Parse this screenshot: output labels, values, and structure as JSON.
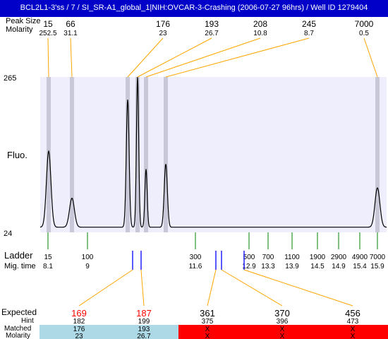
{
  "window": {
    "title": "BCL2L1-3'ss / 7 / SI_SR-A1_global_1|NIH:OVCAR-3-Crashing (2006-07-27 96hrs) / Well ID 1279404"
  },
  "colors": {
    "title_bar": "#0000c8",
    "plot_background": "#eeeefc",
    "band_marker": "#c8c8d8",
    "trace": "#000000",
    "ladder_tick": "#008000",
    "orange_connector": "#ffa500",
    "matched_marker": "#0000ff",
    "matched_bg": "#add8e6",
    "unmatched_bg": "#ff0000",
    "hint_red": "#ff0000"
  },
  "header": {
    "row1_label": "Peak Size",
    "row2_label": "Molarity",
    "peaks": [
      {
        "size": "15",
        "molarity": "252.5"
      },
      {
        "size": "66",
        "molarity": "31.1"
      },
      {
        "size": "176",
        "molarity": "23"
      },
      {
        "size": "193",
        "molarity": "26.7"
      },
      {
        "size": "208",
        "molarity": "10.8"
      },
      {
        "size": "245",
        "molarity": "8.7"
      },
      {
        "size": "7000",
        "molarity": "0.5"
      }
    ]
  },
  "chart_data": {
    "type": "line",
    "ylabel": "Fluo.",
    "ylim": [
      24,
      265
    ],
    "y_tick_labels": [
      "265",
      "24"
    ],
    "x_scale": "ladder size (bp), piecewise by ladder",
    "ladder": {
      "label": "Ladder",
      "mig_label": "Mig. time",
      "entries": [
        {
          "size": "15",
          "mig_time": "8.1"
        },
        {
          "size": "100",
          "mig_time": "9"
        },
        {
          "size": "300",
          "mig_time": "11.6"
        },
        {
          "size": "500",
          "mig_time": "12.9"
        },
        {
          "size": "700",
          "mig_time": "13.3"
        },
        {
          "size": "1100",
          "mig_time": "13.9"
        },
        {
          "size": "1900",
          "mig_time": "14.5"
        },
        {
          "size": "2900",
          "mig_time": "14.9"
        },
        {
          "size": "4900",
          "mig_time": "15.4"
        },
        {
          "size": "7000",
          "mig_time": "15.9"
        }
      ]
    },
    "peaks": [
      {
        "size": 15,
        "height": 150
      },
      {
        "size": 66,
        "height": 77
      },
      {
        "size": 176,
        "height": 230
      },
      {
        "size": 193,
        "height": 265
      },
      {
        "size": 208,
        "height": 122
      },
      {
        "size": 245,
        "height": 130
      },
      {
        "size": 7000,
        "height": 93
      }
    ],
    "baseline": 32
  },
  "expected": {
    "labels": {
      "expected": "Expected",
      "hint": "Hint",
      "matched": "Matched",
      "molarity": "Molarity"
    },
    "columns": [
      {
        "expected": "169",
        "hint": "182",
        "matched": "176",
        "molarity": "23",
        "status": "matched",
        "red": true
      },
      {
        "expected": "187",
        "hint": "199",
        "matched": "193",
        "molarity": "26.7",
        "status": "matched",
        "red": true
      },
      {
        "expected": "361",
        "hint": "375",
        "matched": "X",
        "molarity": "X",
        "status": "unmatched",
        "red": false
      },
      {
        "expected": "370",
        "hint": "396",
        "matched": "X",
        "molarity": "X",
        "status": "unmatched",
        "red": false
      },
      {
        "expected": "456",
        "hint": "473",
        "matched": "X",
        "molarity": "X",
        "status": "unmatched",
        "red": false
      }
    ]
  }
}
